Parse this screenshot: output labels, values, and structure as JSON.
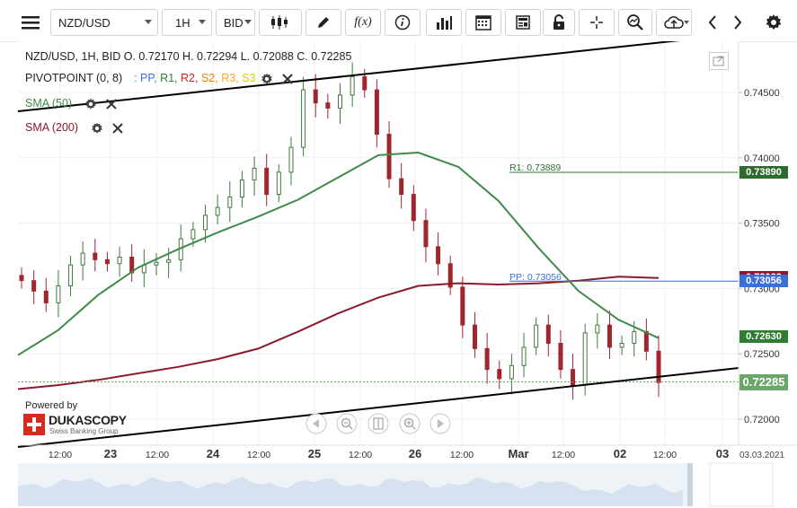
{
  "toolbar": {
    "symbol": "NZD/USD",
    "timeframe": "1H",
    "price_side": "BID",
    "fx_label": "f(x)"
  },
  "legend": {
    "ohlc": "NZD/USD, 1H, BID    O. 0.72170 H. 0.72294 L. 0.72088 C. 0.72285",
    "pivot_name": "PIVOTPOINT (0, 8)",
    "pivot_levels": [
      {
        "label": ": PP,",
        "color": "#3a6fd8"
      },
      {
        "label": "R1,",
        "color": "#2e7d32"
      },
      {
        "label": "R2,",
        "color": "#c62828"
      },
      {
        "label": "S2,",
        "color": "#f57c00"
      },
      {
        "label": "R3,",
        "color": "#f9a825"
      },
      {
        "label": "S3",
        "color": "#fdd835"
      }
    ],
    "sma50": "SMA (50)",
    "sma200": "SMA (200)"
  },
  "colors": {
    "up": "#3e7a3e",
    "down": "#a0262e",
    "sma50": "#3e8a4a",
    "sma200": "#8b1a2b",
    "pp": "#3a6fd8",
    "r1": "#2e7d32"
  },
  "price_axis": {
    "labels": [
      "0.74500",
      "0.74000",
      "0.73500",
      "0.73000",
      "0.72500",
      "0.72000"
    ],
    "values": [
      0.745,
      0.74,
      0.735,
      0.73,
      0.725,
      0.72
    ]
  },
  "price_tags": [
    {
      "label": "0.73890",
      "color": "#2e6b2e",
      "value": 0.7389
    },
    {
      "label": "0.73083",
      "color": "#8b1a2b",
      "value": 0.73083
    },
    {
      "label": "0.73056",
      "color": "#3a6fd8",
      "value": 0.73056
    },
    {
      "label": "0.72630",
      "color": "#2e7d32",
      "value": 0.7263
    },
    {
      "label": "0.72285",
      "color": "#6aa56a",
      "value": 0.72285
    }
  ],
  "level_labels": {
    "r1": "R1: 0.73889",
    "pp": "PP: 0.73056"
  },
  "time_axis": {
    "labels": [
      "12:00",
      "23",
      "12:00",
      "24",
      "12:00",
      "25",
      "12:00",
      "26",
      "12:00",
      "Mar",
      "12:00",
      "02",
      "12:00",
      "03"
    ],
    "end_date": "03.03.2021"
  },
  "branding": {
    "powered_by": "Powered by",
    "company": "DUKASCOPY",
    "tagline": "Swiss Banking Group"
  },
  "chart_data": {
    "type": "candlestick",
    "symbol": "NZD/USD",
    "timeframe": "1H",
    "last_close": 0.72285,
    "ohlc_last": {
      "open": 0.7217,
      "high": 0.72294,
      "low": 0.72088,
      "close": 0.72285
    },
    "ylim": [
      0.7193,
      0.7475
    ],
    "pivot": {
      "PP": 0.73056,
      "R1": 0.73889
    },
    "close_path": [
      0.7306,
      0.7298,
      0.7289,
      0.7302,
      0.7318,
      0.7327,
      0.7322,
      0.7319,
      0.7324,
      0.7312,
      0.7318,
      0.732,
      0.7322,
      0.7338,
      0.7345,
      0.7356,
      0.7362,
      0.737,
      0.7383,
      0.7392,
      0.7372,
      0.7389,
      0.7408,
      0.7452,
      0.7442,
      0.7438,
      0.7448,
      0.7462,
      0.7452,
      0.7418,
      0.7384,
      0.7372,
      0.7352,
      0.7332,
      0.7319,
      0.7301,
      0.7272,
      0.7254,
      0.7238,
      0.7231,
      0.7241,
      0.7255,
      0.7272,
      0.7258,
      0.7238,
      0.7226,
      0.7266,
      0.7272,
      0.7255,
      0.7258,
      0.7267,
      0.7252,
      0.7228
    ],
    "sma50_path": [
      0.7249,
      0.7268,
      0.7295,
      0.7316,
      0.733,
      0.7343,
      0.7355,
      0.7368,
      0.7385,
      0.7402,
      0.7404,
      0.7393,
      0.7367,
      0.7331,
      0.7298,
      0.7276,
      0.7262
    ],
    "sma200_path": [
      0.7223,
      0.7226,
      0.723,
      0.7235,
      0.724,
      0.7246,
      0.7254,
      0.7267,
      0.7281,
      0.7293,
      0.7302,
      0.7304,
      0.7303,
      0.7304,
      0.7306,
      0.7309,
      0.7308
    ]
  }
}
